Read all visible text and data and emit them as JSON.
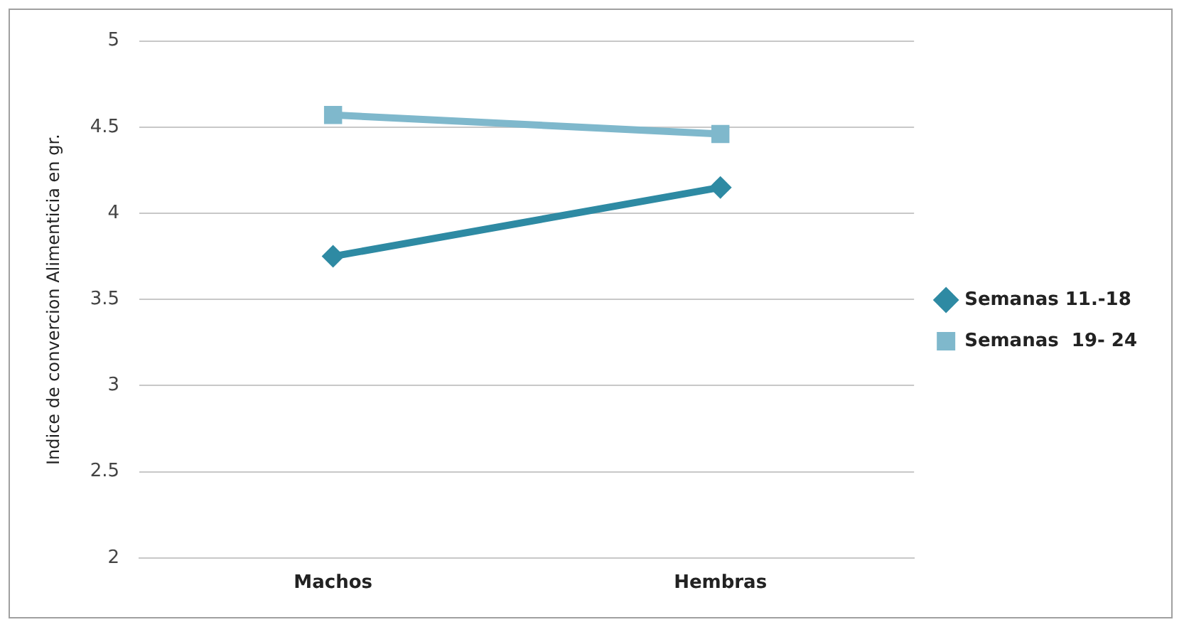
{
  "chart_data": {
    "type": "line",
    "ylabel": "Indice de convercion Alimenticia en gr.",
    "categories": [
      "Machos",
      "Hembras"
    ],
    "series": [
      {
        "name": "Semanas 11.-18",
        "color": "#2e8aa3",
        "values": [
          3.75,
          4.15
        ],
        "marker": "diamond"
      },
      {
        "name": "Semanas  19- 24",
        "color": "#7fb8cc",
        "values": [
          4.57,
          4.46
        ],
        "marker": "square"
      }
    ],
    "ylim": [
      2,
      5
    ],
    "yticks": [
      2,
      2.5,
      3,
      3.5,
      4,
      4.5,
      5
    ],
    "grid": "y",
    "legend": "right",
    "line_style": "solid"
  }
}
